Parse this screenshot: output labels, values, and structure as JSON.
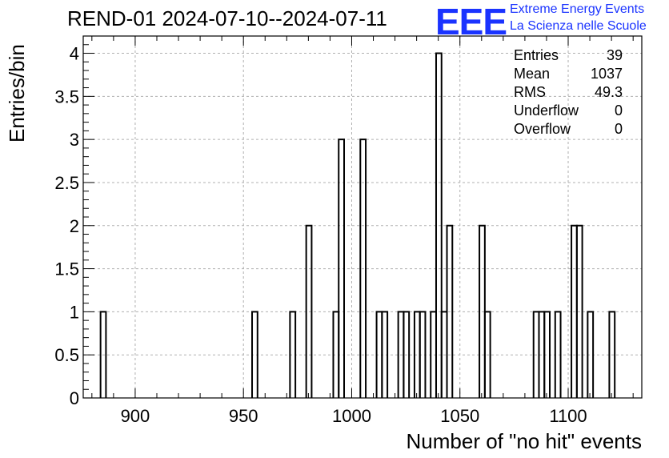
{
  "title": "REND-01 2024-07-10--2024-07-11",
  "logo": {
    "mark": "EEE",
    "line1": "Extreme Energy Events",
    "line2": "La Scienza nelle Scuole",
    "color": "#1a33ff"
  },
  "stats": [
    {
      "label": "Entries",
      "value": "39"
    },
    {
      "label": "Mean",
      "value": "1037"
    },
    {
      "label": "RMS",
      "value": "49.3"
    },
    {
      "label": "Underflow",
      "value": "0"
    },
    {
      "label": "Overflow",
      "value": "0"
    }
  ],
  "chart_data": {
    "type": "bar",
    "title": "REND-01 2024-07-10--2024-07-11",
    "xlabel": "Number of \"no hit\" events",
    "ylabel": "Entries/bin",
    "xlim": [
      876,
      1134
    ],
    "ylim": [
      0,
      4.2
    ],
    "bin_width": 2.5,
    "x_ticks": [
      900,
      950,
      1000,
      1050,
      1100
    ],
    "y_ticks": [
      0,
      0.5,
      1,
      1.5,
      2,
      2.5,
      3,
      3.5,
      4
    ],
    "y_tick_labels": [
      "0",
      "0.5",
      "1",
      "1.5",
      "2",
      "2.5",
      "3",
      "3.5",
      "4"
    ],
    "grid": true,
    "bins": [
      {
        "x": 884.0,
        "count": 1
      },
      {
        "x": 954.0,
        "count": 1
      },
      {
        "x": 971.5,
        "count": 1
      },
      {
        "x": 979.0,
        "count": 2
      },
      {
        "x": 991.5,
        "count": 1
      },
      {
        "x": 994.0,
        "count": 3
      },
      {
        "x": 1004.0,
        "count": 3
      },
      {
        "x": 1011.5,
        "count": 1
      },
      {
        "x": 1014.0,
        "count": 1
      },
      {
        "x": 1021.5,
        "count": 1
      },
      {
        "x": 1024.0,
        "count": 1
      },
      {
        "x": 1029.0,
        "count": 1
      },
      {
        "x": 1031.5,
        "count": 1
      },
      {
        "x": 1036.5,
        "count": 1
      },
      {
        "x": 1039.0,
        "count": 4
      },
      {
        "x": 1041.5,
        "count": 1
      },
      {
        "x": 1044.0,
        "count": 2
      },
      {
        "x": 1059.0,
        "count": 2
      },
      {
        "x": 1061.5,
        "count": 1
      },
      {
        "x": 1084.0,
        "count": 1
      },
      {
        "x": 1086.5,
        "count": 1
      },
      {
        "x": 1089.0,
        "count": 1
      },
      {
        "x": 1094.0,
        "count": 1
      },
      {
        "x": 1101.5,
        "count": 2
      },
      {
        "x": 1104.0,
        "count": 2
      },
      {
        "x": 1109.0,
        "count": 1
      },
      {
        "x": 1119.0,
        "count": 1
      }
    ]
  }
}
